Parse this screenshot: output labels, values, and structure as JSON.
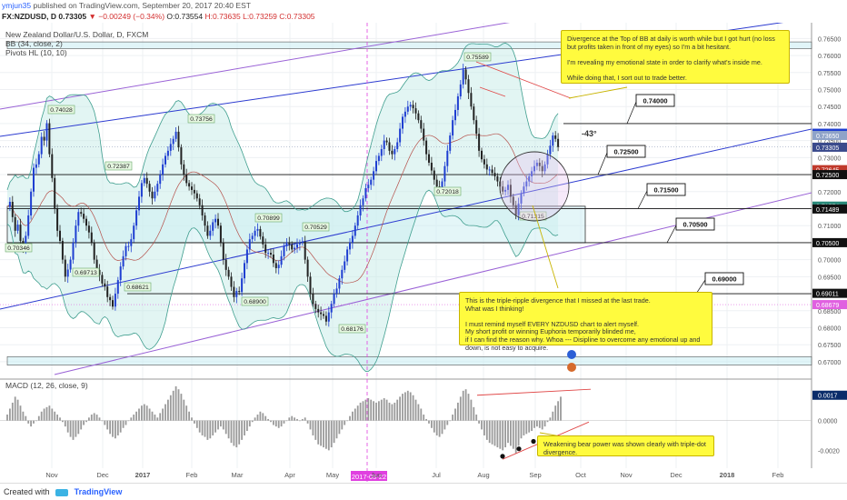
{
  "header": {
    "author": "ymjun35",
    "published": "published on TradingView.com, September 20, 2017 20:40 EST",
    "symbol": "FX:NZDUSD, D",
    "last": "0.73305",
    "change": "▼ −0.00249 (−0.34%)",
    "ohlc_o": "O:0.73554",
    "ohlc_h": "H:0.73635",
    "ohlc_l": "L:0.73259",
    "ohlc_c": "C:0.73305"
  },
  "legend": {
    "title": "New Zealand Dollar/U.S. Dollar, D, FXCM",
    "bb": "BB (34, close, 2)",
    "pivots": "Pivots HL (10, 10)"
  },
  "macd_legend": "MACD (12, 26, close, 9)",
  "footer": {
    "created_with": "Created with",
    "brand": "TradingView"
  },
  "notes": {
    "top": "Divergence at the Top of BB at daily is worth while but I got hurt (no loss but profits taken in front of my eyes) so I'm a bit hesitant.\n\nI'm revealing my emotional state in order to clarify what's inside me.\n\nWhile doing that, I sort out to trade better.",
    "middle": "This is the triple-ripple divergence that I missed at the last trade.\nWhat was I thinking!\n\nI must remind myself EVERY NZDUSD chart to alert myself.\nMy short profit or winning Euphoria temporarily blinded me,\nif I can find the reason why.  Whoa --- Disipline to overcome any emotional up and down, is not easy to acquire.",
    "bottom": "Weakening bear power was shown clearly with triple-dot divergence."
  },
  "angle_label": "-43°",
  "date_marker": "2017-05-22",
  "colors": {
    "up": "#1f3fd1",
    "down": "#222222",
    "bb": "#3f9e8e",
    "channel_blue": "#2c3bd0",
    "channel_purple": "#9a62d6",
    "note": "#fffb3e",
    "macd_bar": "#9a9a9a",
    "red_line": "#e04848"
  },
  "chart_data": [
    {
      "type": "candlestick",
      "title": "New Zealand Dollar/U.S. Dollar, D, FXCM",
      "price_axis": [
        "0.76500",
        "0.76000",
        "0.75500",
        "0.75000",
        "0.74500",
        "0.74000",
        "0.73500",
        "0.73000",
        "0.72500",
        "0.72000",
        "0.71500",
        "0.71000",
        "0.70500",
        "0.70000",
        "0.69500",
        "0.69000",
        "0.68500",
        "0.68000",
        "0.67500",
        "0.67000"
      ],
      "time_axis": [
        "Nov",
        "Dec",
        "2017",
        "Feb",
        "Mar",
        "Apr",
        "May",
        "Jun",
        "Jul",
        "Aug",
        "Sep",
        "Oct",
        "Nov",
        "Dec",
        "2018",
        "Feb"
      ],
      "ylim": [
        0.6665,
        0.7675
      ],
      "price_tags": [
        {
          "label": "0.73716",
          "color": "#1f3fd1"
        },
        {
          "label": "0.73650",
          "color": "#8fa3c8"
        },
        {
          "label": "0.73305",
          "color": "#3a4a8c"
        },
        {
          "label": "0.72645",
          "color": "#c0392b"
        },
        {
          "label": "0.72500",
          "color": "#111111"
        },
        {
          "label": "0.71574",
          "color": "#2a8a7a"
        },
        {
          "label": "0.71489",
          "color": "#111111"
        },
        {
          "label": "0.70500",
          "color": "#111111"
        },
        {
          "label": "0.69011",
          "color": "#111111"
        },
        {
          "label": "0.68679",
          "color": "#e060e0"
        }
      ],
      "pivot_labels": [
        "0.74028",
        "0.70346",
        "0.72387",
        "0.73756",
        "0.69713",
        "0.70899",
        "0.70529",
        "0.68621",
        "0.68900",
        "0.68176",
        "0.75589",
        "0.72018",
        "0.71315"
      ],
      "horizontal_level_labels": [
        "0.74000",
        "0.72500",
        "0.71500",
        "0.70500",
        "0.69000"
      ],
      "candles": [
        0.7155,
        0.717,
        0.7125,
        0.7085,
        0.7103,
        0.7055,
        0.7035,
        0.707,
        0.713,
        0.72,
        0.727,
        0.728,
        0.731,
        0.7361,
        0.735,
        0.7401,
        0.731,
        0.724,
        0.715,
        0.7085,
        0.7055,
        0.7,
        0.695,
        0.6971,
        0.7,
        0.705,
        0.71,
        0.714,
        0.7135,
        0.712,
        0.71,
        0.708,
        0.705,
        0.7,
        0.697,
        0.6955,
        0.693,
        0.6921,
        0.689,
        0.6881,
        0.6862,
        0.69,
        0.694,
        0.698,
        0.701,
        0.704,
        0.704,
        0.706,
        0.71,
        0.7145,
        0.7185,
        0.7225,
        0.724,
        0.7223,
        0.72,
        0.718,
        0.72,
        0.7223,
        0.725,
        0.728,
        0.7305,
        0.732,
        0.734,
        0.7355,
        0.7376,
        0.733,
        0.728,
        0.725,
        0.7225,
        0.7215,
        0.7205,
        0.7195,
        0.718,
        0.716,
        0.713,
        0.71,
        0.707,
        0.7085,
        0.711,
        0.712,
        0.71,
        0.705,
        0.7,
        0.697,
        0.695,
        0.692,
        0.689,
        0.6908,
        0.6905,
        0.6945,
        0.699,
        0.703,
        0.706,
        0.707,
        0.7085,
        0.709,
        0.7068,
        0.7045,
        0.702,
        0.702,
        0.7015,
        0.699,
        0.6975,
        0.6985,
        0.701,
        0.704,
        0.705,
        0.7045,
        0.703,
        0.7035,
        0.7045,
        0.705,
        0.7053,
        0.7,
        0.695,
        0.69,
        0.687,
        0.6855,
        0.6845,
        0.684,
        0.6835,
        0.6818,
        0.6845,
        0.687,
        0.69,
        0.6915,
        0.6945,
        0.697,
        0.6995,
        0.703,
        0.705,
        0.707,
        0.71,
        0.713,
        0.716,
        0.718,
        0.721,
        0.722,
        0.7235,
        0.726,
        0.729,
        0.7305,
        0.7325,
        0.735,
        0.7345,
        0.732,
        0.731,
        0.7325,
        0.7345,
        0.7385,
        0.742,
        0.7435,
        0.745,
        0.7455,
        0.7445,
        0.743,
        0.741,
        0.7385,
        0.735,
        0.731,
        0.7285,
        0.7262,
        0.7235,
        0.7215,
        0.7202,
        0.723,
        0.7275,
        0.732,
        0.7365,
        0.741,
        0.744,
        0.748,
        0.7515,
        0.7559,
        0.753,
        0.749,
        0.745,
        0.741,
        0.737,
        0.732,
        0.7295,
        0.728,
        0.7265,
        0.7265,
        0.7255,
        0.7245,
        0.723,
        0.7215,
        0.72,
        0.7205,
        0.722,
        0.7185,
        0.716,
        0.7131,
        0.7165,
        0.7195,
        0.7215,
        0.723,
        0.7245,
        0.726,
        0.7275,
        0.7285,
        0.7275,
        0.726,
        0.728,
        0.731,
        0.7335,
        0.7365,
        0.7355,
        0.7331
      ]
    },
    {
      "type": "bar",
      "title": "MACD (12, 26, close, 9)",
      "y_axis": [
        "0.0017",
        "0.0000",
        "-0.0020"
      ],
      "ylim": [
        -0.0032,
        0.0026
      ],
      "histogram": [
        0.0004,
        0.0008,
        0.0012,
        0.0016,
        0.0014,
        0.001,
        0.0006,
        0.0003,
        -0.0002,
        -0.0004,
        -0.0002,
        0.0,
        0.0003,
        0.0006,
        0.0008,
        0.0009,
        0.001,
        0.0008,
        0.0006,
        0.0004,
        0.0002,
        -0.0001,
        -0.0004,
        -0.0008,
        -0.0011,
        -0.0013,
        -0.0011,
        -0.0009,
        -0.0006,
        -0.0003,
        -0.0001,
        0.0002,
        0.0004,
        0.0005,
        0.0004,
        0.0002,
        0.0,
        -0.0003,
        -0.0006,
        -0.0009,
        -0.0011,
        -0.0012,
        -0.001,
        -0.0008,
        -0.0005,
        -0.0003,
        0.0,
        0.0002,
        0.0004,
        0.0006,
        0.0008,
        0.001,
        0.0011,
        0.001,
        0.0008,
        0.0006,
        0.0004,
        0.0002,
        0.0005,
        0.0008,
        0.0011,
        0.0014,
        0.0017,
        0.002,
        0.0023,
        0.0021,
        0.0018,
        0.0014,
        0.001,
        0.0006,
        0.0002,
        -0.0002,
        -0.0005,
        -0.0008,
        -0.001,
        -0.0011,
        -0.0013,
        -0.0012,
        -0.001,
        -0.0008,
        -0.0006,
        -0.0004,
        -0.0006,
        -0.0009,
        -0.0012,
        -0.0015,
        -0.0017,
        -0.0018,
        -0.0016,
        -0.0013,
        -0.001,
        -0.0007,
        -0.0004,
        -0.0001,
        0.0002,
        0.0004,
        0.0006,
        0.0005,
        0.0003,
        0.0001,
        -0.0001,
        -0.0003,
        -0.0004,
        -0.0005,
        -0.0004,
        -0.0002,
        0.0,
        0.0002,
        0.0003,
        0.0002,
        0.0001,
        0.0,
        0.0001,
        0.0002,
        -0.0002,
        -0.0006,
        -0.001,
        -0.0013,
        -0.0016,
        -0.0017,
        -0.0018,
        -0.0019,
        -0.002,
        -0.0018,
        -0.0015,
        -0.0012,
        -0.0009,
        -0.0006,
        -0.0003,
        0.0,
        0.0003,
        0.0006,
        0.0008,
        0.001,
        0.0012,
        0.0013,
        0.0014,
        0.0015,
        0.0014,
        0.0013,
        0.0012,
        0.0013,
        0.0014,
        0.0015,
        0.0014,
        0.0012,
        0.0011,
        0.0012,
        0.0014,
        0.0016,
        0.0018,
        0.0019,
        0.002,
        0.0019,
        0.0017,
        0.0014,
        0.0011,
        0.0008,
        0.0004,
        0.0001,
        -0.0002,
        -0.0005,
        -0.0008,
        -0.001,
        -0.0011,
        -0.0009,
        -0.0006,
        -0.0003,
        0.0,
        0.0004,
        0.0008,
        0.0012,
        0.0016,
        0.002,
        0.0021,
        0.0018,
        0.0014,
        0.0009,
        0.0004,
        -0.0002,
        -0.0006,
        -0.001,
        -0.0013,
        -0.0015,
        -0.0016,
        -0.0017,
        -0.0018,
        -0.0019,
        -0.002,
        -0.0018,
        -0.0015,
        -0.0017,
        -0.0019,
        -0.0022,
        -0.0017,
        -0.0012,
        -0.001,
        -0.0009,
        -0.0008,
        -0.0007,
        -0.0005,
        -0.0004,
        -0.0005,
        -0.0006,
        -0.0004,
        -0.0001,
        0.0002,
        0.0006,
        0.001,
        0.0013,
        0.0016
      ]
    }
  ]
}
